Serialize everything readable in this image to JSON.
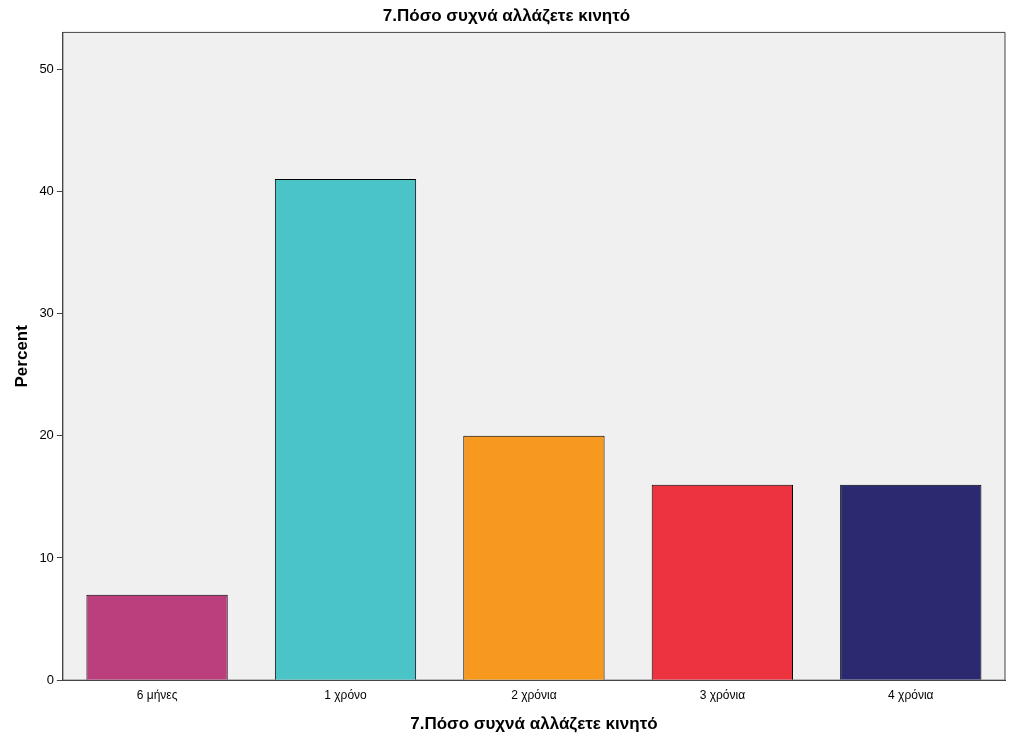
{
  "chart_data": {
    "type": "bar",
    "title": "7.Πόσο συχνά αλλάζετε κινητό",
    "xlabel": "7.Πόσο συχνά αλλάζετε κινητό",
    "ylabel": "Percent",
    "categories": [
      "6 μήνες",
      "1 χρόνο",
      "2 χρόνια",
      "3 χρόνια",
      "4 χρόνια"
    ],
    "values": [
      7,
      41,
      20,
      16,
      16
    ],
    "colors": [
      "#bb3f7d",
      "#4bc4c8",
      "#f7991f",
      "#ee3340",
      "#2b2a70"
    ],
    "ylim": [
      0,
      53
    ],
    "yticks": [
      0,
      10,
      20,
      30,
      40,
      50
    ],
    "grid": false,
    "legend": false
  }
}
